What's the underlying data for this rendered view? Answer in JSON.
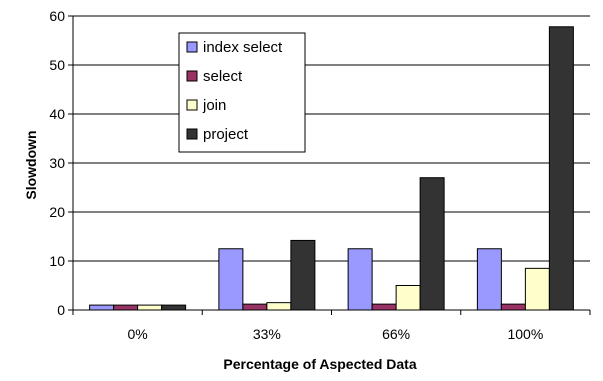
{
  "chart_data": {
    "type": "bar",
    "categories": [
      "0%",
      "33%",
      "66%",
      "100%"
    ],
    "series": [
      {
        "name": "index select",
        "color": "#9999ff",
        "values": [
          1,
          12.5,
          12.5,
          12.5
        ]
      },
      {
        "name": "select",
        "color": "#993366",
        "values": [
          1,
          1.2,
          1.2,
          1.2
        ]
      },
      {
        "name": "join",
        "color": "#ffffcc",
        "values": [
          1,
          1.5,
          5,
          8.5
        ]
      },
      {
        "name": "project",
        "color": "#333333",
        "values": [
          1,
          14.2,
          27,
          57.8
        ]
      }
    ],
    "title": "",
    "xlabel": "Percentage of Aspected Data",
    "ylabel": "Slowdown",
    "ylim": [
      0,
      60
    ],
    "yticks": [
      0,
      10,
      20,
      30,
      40,
      50,
      60
    ],
    "grid": true,
    "legend_position": "top-center"
  }
}
